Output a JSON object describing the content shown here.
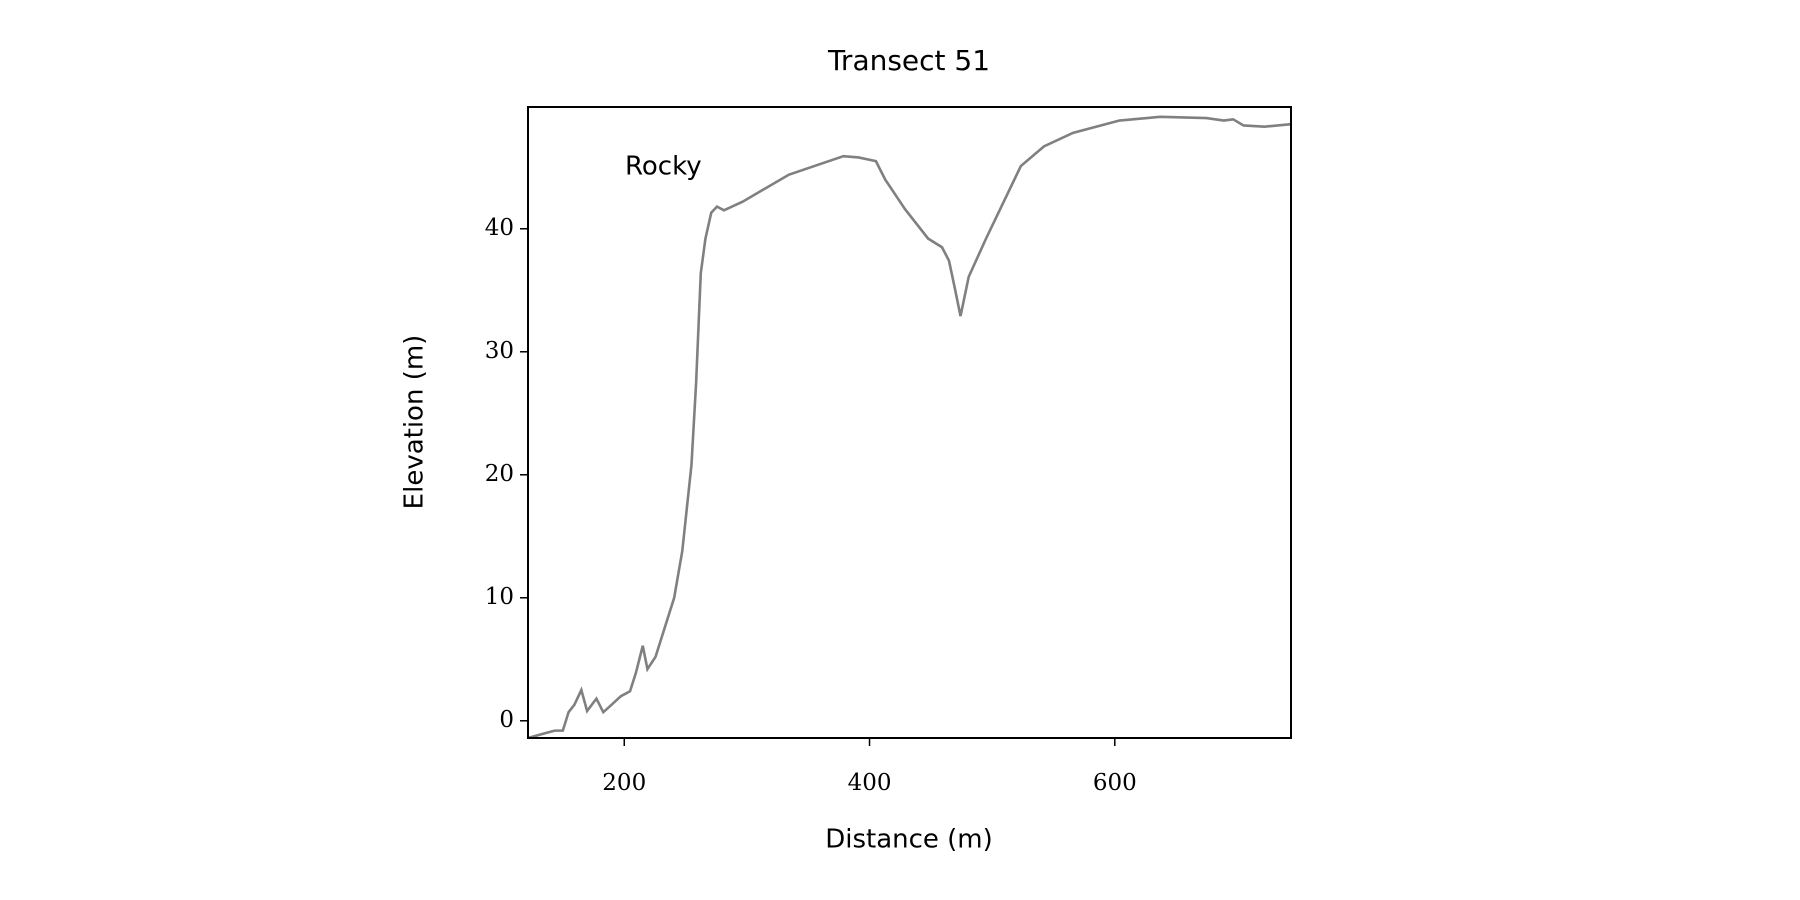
{
  "chart_data": {
    "type": "line",
    "title": "Transect 51",
    "xlabel": "Distance (m)",
    "ylabel": "Elevation (m)",
    "annotation": "Rocky",
    "series": [
      {
        "color": "#808080",
        "x": [
          121.5,
          135.7,
          143.3,
          149.9,
          154.6,
          159.3,
          165.0,
          169.7,
          177.3,
          182.9,
          189.6,
          197.2,
          204.7,
          209.5,
          215.1,
          218.9,
          225.5,
          233.1,
          240.7,
          247.3,
          254.8,
          258.6,
          262.4,
          266.2,
          270.9,
          275.6,
          281.3,
          296.5,
          334.3,
          378.7,
          391.0,
          405.2,
          412.8,
          428.9,
          447.8,
          459.1,
          464.8,
          469.5,
          474.2,
          480.9,
          495.0,
          523.4,
          542.3,
          566.0,
          603.8,
          636.9,
          674.7,
          688.9,
          696.5,
          705.0,
          722.0,
          743.7
        ],
        "values": [
          -1.4,
          -1.0,
          -0.8,
          -0.8,
          0.7,
          1.3,
          2.5,
          0.8,
          1.8,
          0.7,
          1.3,
          2.0,
          2.4,
          3.9,
          6.1,
          4.2,
          5.2,
          7.6,
          10.0,
          13.8,
          20.8,
          27.5,
          36.4,
          39.2,
          41.3,
          41.8,
          41.5,
          42.2,
          44.4,
          45.9,
          45.8,
          45.5,
          44.0,
          41.6,
          39.2,
          38.5,
          37.4,
          35.2,
          32.9,
          36.1,
          39.2,
          45.1,
          46.7,
          47.8,
          48.8,
          49.1,
          49.0,
          48.8,
          48.9,
          48.4,
          48.3,
          48.5
        ]
      }
    ],
    "xlim": [
      121.5,
      743.7
    ],
    "ylim": [
      -1.4,
      49.9
    ],
    "xticks": [
      200,
      400,
      600
    ],
    "yticks": [
      0,
      10,
      20,
      30,
      40
    ]
  }
}
